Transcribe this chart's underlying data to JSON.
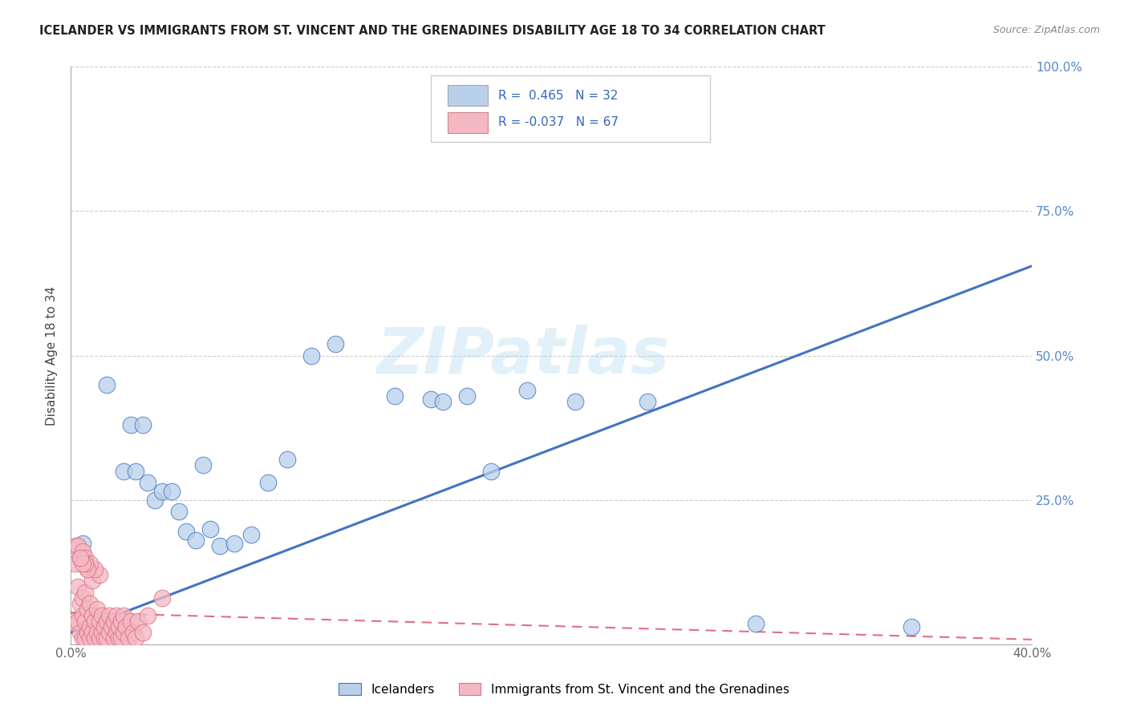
{
  "title": "ICELANDER VS IMMIGRANTS FROM ST. VINCENT AND THE GRENADINES DISABILITY AGE 18 TO 34 CORRELATION CHART",
  "source": "Source: ZipAtlas.com",
  "ylabel": "Disability Age 18 to 34",
  "xlim": [
    0.0,
    0.4
  ],
  "ylim": [
    0.0,
    1.0
  ],
  "xtick_labels": [
    "0.0%",
    "",
    "",
    "",
    "40.0%"
  ],
  "xtick_vals": [
    0.0,
    0.1,
    0.2,
    0.3,
    0.4
  ],
  "ytick_labels_right": [
    "100.0%",
    "75.0%",
    "50.0%",
    "25.0%"
  ],
  "ytick_vals_right": [
    1.0,
    0.75,
    0.5,
    0.25
  ],
  "R_blue": 0.465,
  "N_blue": 32,
  "R_pink": -0.037,
  "N_pink": 67,
  "legend_label_blue": "Icelanders",
  "legend_label_pink": "Immigrants from St. Vincent and the Grenadines",
  "blue_color": "#b8d0ea",
  "blue_line_color": "#4472c4",
  "pink_color": "#f4b8c4",
  "pink_line_color": "#e07080",
  "watermark_text": "ZIPatlas",
  "blue_line_x": [
    0.0,
    0.4
  ],
  "blue_line_y": [
    0.02,
    0.655
  ],
  "pink_line_x": [
    0.0,
    0.4
  ],
  "pink_line_y": [
    0.055,
    0.008
  ],
  "blue_scatter_x": [
    0.005,
    0.015,
    0.022,
    0.025,
    0.027,
    0.03,
    0.032,
    0.035,
    0.038,
    0.042,
    0.045,
    0.048,
    0.052,
    0.055,
    0.058,
    0.062,
    0.068,
    0.075,
    0.082,
    0.09,
    0.1,
    0.11,
    0.135,
    0.15,
    0.155,
    0.165,
    0.175,
    0.19,
    0.21,
    0.24,
    0.285,
    0.35
  ],
  "blue_scatter_y": [
    0.175,
    0.45,
    0.3,
    0.38,
    0.3,
    0.38,
    0.28,
    0.25,
    0.265,
    0.265,
    0.23,
    0.195,
    0.18,
    0.31,
    0.2,
    0.17,
    0.175,
    0.19,
    0.28,
    0.32,
    0.5,
    0.52,
    0.43,
    0.425,
    0.42,
    0.43,
    0.3,
    0.44,
    0.42,
    0.42,
    0.035,
    0.03
  ],
  "pink_scatter_x": [
    0.001,
    0.002,
    0.002,
    0.003,
    0.003,
    0.003,
    0.004,
    0.004,
    0.004,
    0.005,
    0.005,
    0.005,
    0.005,
    0.006,
    0.006,
    0.006,
    0.006,
    0.007,
    0.007,
    0.007,
    0.008,
    0.008,
    0.008,
    0.009,
    0.009,
    0.009,
    0.01,
    0.01,
    0.011,
    0.011,
    0.012,
    0.012,
    0.013,
    0.013,
    0.014,
    0.014,
    0.015,
    0.015,
    0.016,
    0.016,
    0.017,
    0.018,
    0.018,
    0.019,
    0.019,
    0.02,
    0.02,
    0.021,
    0.021,
    0.022,
    0.022,
    0.023,
    0.024,
    0.025,
    0.026,
    0.027,
    0.028,
    0.03,
    0.032,
    0.038,
    0.012,
    0.01,
    0.008,
    0.007,
    0.006,
    0.005,
    0.004
  ],
  "pink_scatter_y": [
    0.04,
    0.14,
    0.17,
    0.04,
    0.1,
    0.17,
    0.02,
    0.07,
    0.15,
    0.01,
    0.05,
    0.08,
    0.16,
    0.01,
    0.04,
    0.09,
    0.15,
    0.02,
    0.06,
    0.13,
    0.01,
    0.03,
    0.07,
    0.02,
    0.05,
    0.11,
    0.01,
    0.04,
    0.02,
    0.06,
    0.01,
    0.04,
    0.02,
    0.05,
    0.01,
    0.03,
    0.01,
    0.04,
    0.02,
    0.05,
    0.03,
    0.01,
    0.04,
    0.02,
    0.05,
    0.01,
    0.03,
    0.01,
    0.04,
    0.02,
    0.05,
    0.03,
    0.01,
    0.04,
    0.02,
    0.01,
    0.04,
    0.02,
    0.05,
    0.08,
    0.12,
    0.13,
    0.14,
    0.13,
    0.14,
    0.14,
    0.15
  ]
}
